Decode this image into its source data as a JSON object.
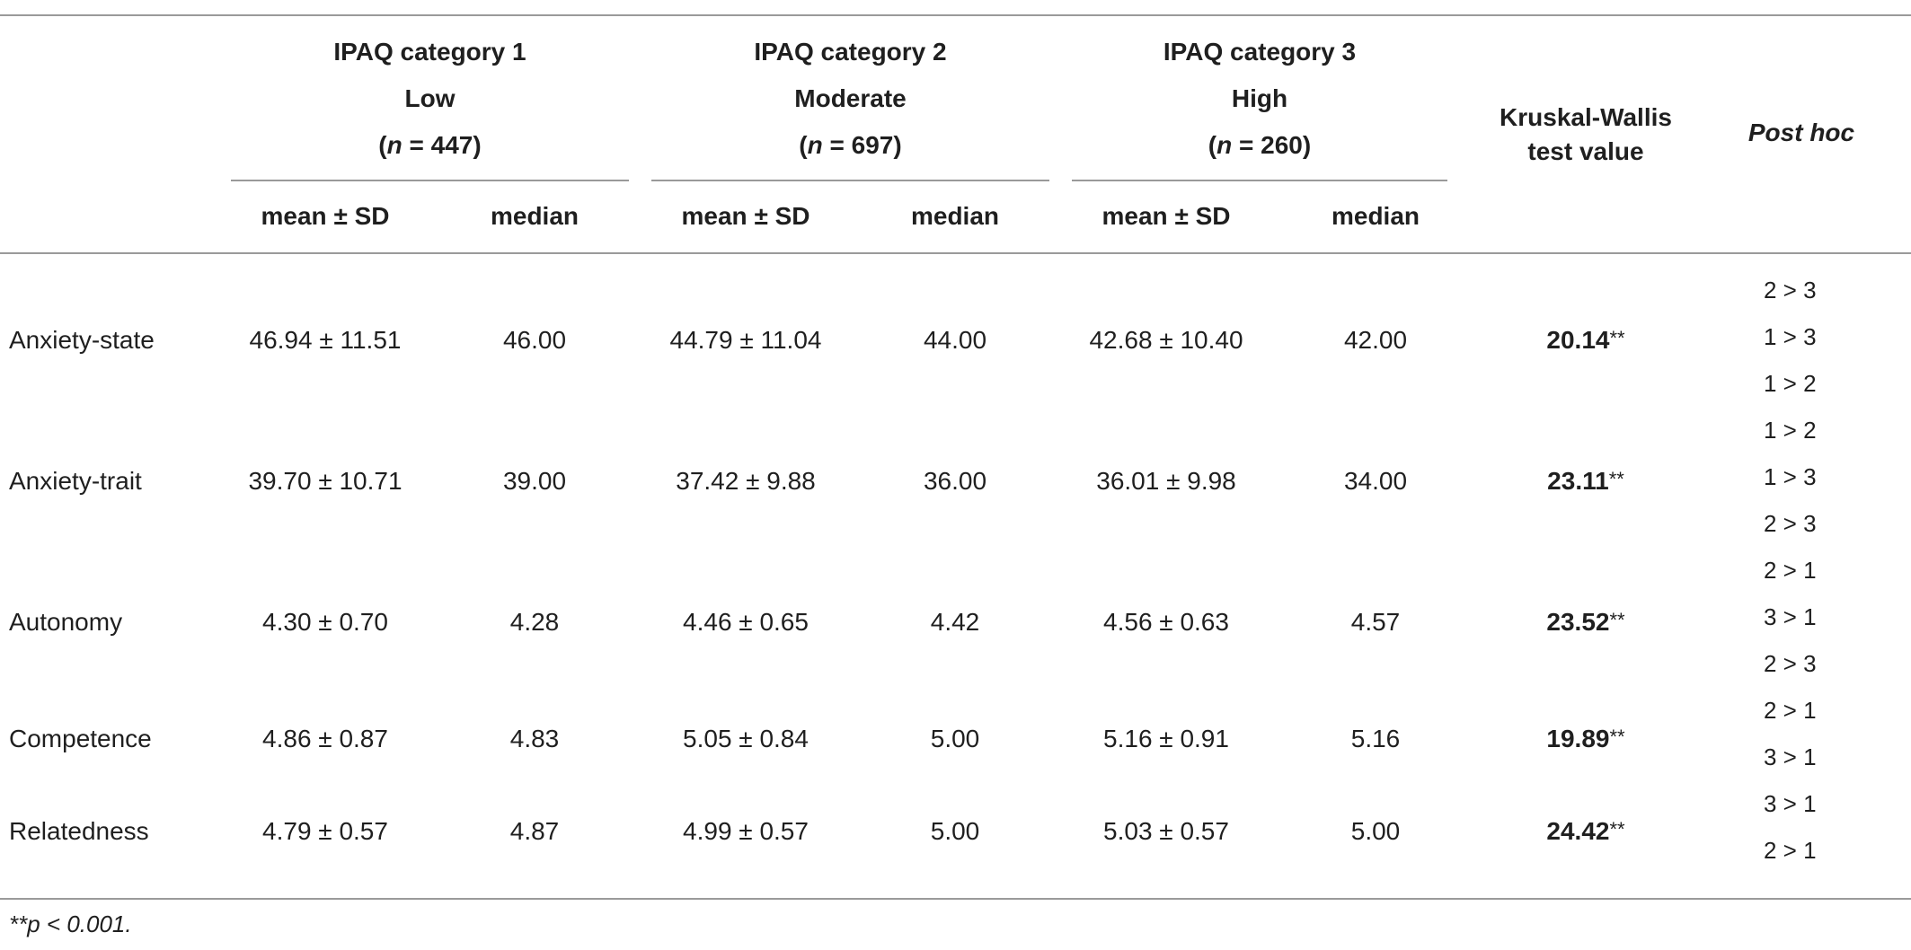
{
  "groups": [
    {
      "title": "IPAQ category 1",
      "level": "Low",
      "n_prefix": "(",
      "n_italic": "n",
      "n_rest": " = 447)"
    },
    {
      "title": "IPAQ category 2",
      "level": "Moderate",
      "n_prefix": "(",
      "n_italic": "n",
      "n_rest": " = 697)"
    },
    {
      "title": "IPAQ category 3",
      "level": "High",
      "n_prefix": "(",
      "n_italic": "n",
      "n_rest": " = 260)"
    }
  ],
  "kruskal_header_1": "Kruskal-Wallis",
  "kruskal_header_2": "test value",
  "posthoc_header": "Post hoc",
  "sub_mean": "mean ± SD",
  "sub_median": "median",
  "rows": [
    {
      "label": "Anxiety-state",
      "g1_mean": "46.94 ± 11.51",
      "g1_median": "46.00",
      "g2_mean": "44.79 ± 11.04",
      "g2_median": "44.00",
      "g3_mean": "42.68 ± 10.40",
      "g3_median": "42.00",
      "kw": "20.14",
      "stars": "**",
      "posthoc": [
        "2 > 3",
        "1 > 3",
        "1 > 2"
      ]
    },
    {
      "label": "Anxiety-trait",
      "g1_mean": "39.70 ± 10.71",
      "g1_median": "39.00",
      "g2_mean": "37.42 ± 9.88",
      "g2_median": "36.00",
      "g3_mean": "36.01 ± 9.98",
      "g3_median": "34.00",
      "kw": "23.11",
      "stars": "**",
      "posthoc": [
        "1 > 2",
        "1 > 3",
        "2 > 3"
      ]
    },
    {
      "label": "Autonomy",
      "g1_mean": "4.30 ± 0.70",
      "g1_median": "4.28",
      "g2_mean": "4.46 ± 0.65",
      "g2_median": "4.42",
      "g3_mean": "4.56 ± 0.63",
      "g3_median": "4.57",
      "kw": "23.52",
      "stars": "**",
      "posthoc": [
        "2 > 1",
        "3 > 1",
        "2 > 3"
      ]
    },
    {
      "label": "Competence",
      "g1_mean": "4.86 ± 0.87",
      "g1_median": "4.83",
      "g2_mean": "5.05 ± 0.84",
      "g2_median": "5.00",
      "g3_mean": "5.16 ± 0.91",
      "g3_median": "5.16",
      "kw": "19.89",
      "stars": "**",
      "posthoc": [
        "2 > 1",
        "3 > 1"
      ]
    },
    {
      "label": "Relatedness",
      "g1_mean": "4.79 ± 0.57",
      "g1_median": "4.87",
      "g2_mean": "4.99 ± 0.57",
      "g2_median": "5.00",
      "g3_mean": "5.03 ± 0.57",
      "g3_median": "5.00",
      "kw": "24.42",
      "stars": "**",
      "posthoc": [
        "3 > 1",
        "2 > 1"
      ]
    }
  ],
  "footnote": "**p < 0.001."
}
